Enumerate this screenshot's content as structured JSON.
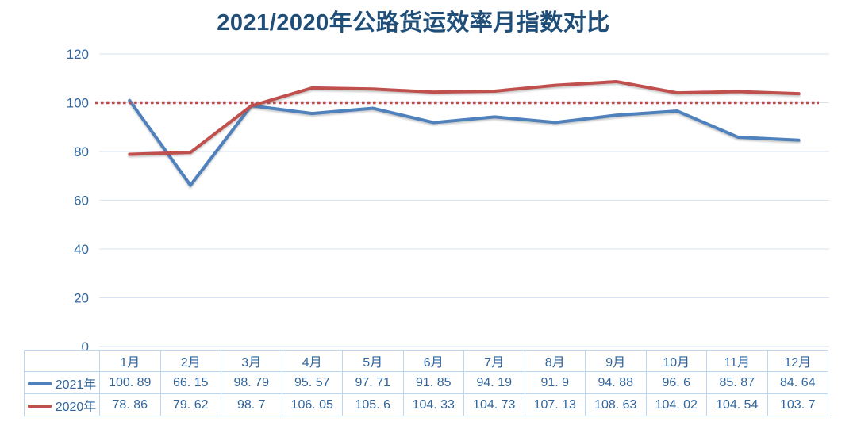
{
  "title": "2021/2020年公路货运效率月指数对比",
  "colors": {
    "background": "#FFFFFF",
    "title_text": "#1F4E79",
    "axis_text": "#31659C",
    "table_text": "#31659C",
    "gridline": "#D9E2F3",
    "table_border": "#BDD7EE",
    "series_2021": "#4F81BD",
    "series_2020": "#C0504D",
    "reference_line": "#BE4B48"
  },
  "chart_data": {
    "type": "line",
    "title": "2021/2020年公路货运效率月指数对比",
    "categories": [
      "1月",
      "2月",
      "3月",
      "4月",
      "5月",
      "6月",
      "7月",
      "8月",
      "9月",
      "10月",
      "11月",
      "12月"
    ],
    "series": [
      {
        "name": "2021年",
        "color": "#4F81BD",
        "values": [
          100.89,
          66.15,
          98.79,
          95.57,
          97.71,
          91.85,
          94.19,
          91.9,
          94.88,
          96.6,
          85.87,
          84.64
        ],
        "display": [
          "100. 89",
          "66. 15",
          "98. 79",
          "95. 57",
          "97. 71",
          "91. 85",
          "94. 19",
          "91. 9",
          "94. 88",
          "96. 6",
          "85. 87",
          "84. 64"
        ]
      },
      {
        "name": "2020年",
        "color": "#C0504D",
        "values": [
          78.86,
          79.62,
          98.7,
          106.05,
          105.6,
          104.33,
          104.73,
          107.13,
          108.63,
          104.02,
          104.54,
          103.7
        ],
        "display": [
          "78. 86",
          "79. 62",
          "98. 7",
          "106. 05",
          "105. 6",
          "104. 33",
          "104. 73",
          "107. 13",
          "108. 63",
          "104. 02",
          "104. 54",
          "103. 7"
        ]
      }
    ],
    "reference_line": {
      "value": 100,
      "style": "dotted",
      "color": "#BE4B48"
    },
    "ylim": [
      0,
      120
    ],
    "yticks": [
      0,
      20,
      40,
      60,
      80,
      100,
      120
    ],
    "ytick_labels": [
      "0",
      "20",
      "40",
      "60",
      "80",
      "100",
      "120"
    ],
    "grid": "horizontal",
    "legend_position": "table-left-column"
  }
}
